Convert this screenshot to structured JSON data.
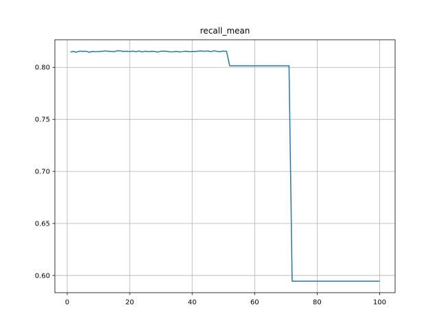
{
  "chart_data": {
    "type": "line",
    "title": "recall_mean",
    "xlabel": "",
    "ylabel": "",
    "xlim": [
      -3.95,
      104.95
    ],
    "ylim": [
      0.5835,
      0.8265
    ],
    "xticks": [
      0,
      20,
      40,
      60,
      80,
      100
    ],
    "yticks": [
      0.6,
      0.65,
      0.7,
      0.75,
      0.8
    ],
    "xtick_labels": [
      "0",
      "20",
      "40",
      "60",
      "80",
      "100"
    ],
    "ytick_labels": [
      "0.60",
      "0.65",
      "0.70",
      "0.75",
      "0.80"
    ],
    "grid": true,
    "series": [
      {
        "color": "#1f77b4",
        "x": [
          1,
          2,
          3,
          4,
          5,
          6,
          7,
          8,
          9,
          10,
          11,
          12,
          13,
          14,
          15,
          16,
          17,
          18,
          19,
          20,
          21,
          22,
          23,
          24,
          25,
          26,
          27,
          28,
          29,
          30,
          31,
          32,
          33,
          34,
          35,
          36,
          37,
          38,
          39,
          40,
          41,
          42,
          43,
          44,
          45,
          46,
          47,
          48,
          49,
          50,
          51,
          52,
          53,
          54,
          55,
          56,
          57,
          58,
          59,
          60,
          61,
          62,
          63,
          64,
          65,
          66,
          67,
          68,
          69,
          70,
          71,
          72,
          73,
          74,
          75,
          76,
          77,
          78,
          79,
          80,
          81,
          82,
          83,
          84,
          85,
          86,
          87,
          88,
          89,
          90,
          91,
          92,
          93,
          94,
          95,
          96,
          97,
          98,
          99,
          100
        ],
        "y": [
          0.8148,
          0.8152,
          0.8146,
          0.8156,
          0.8153,
          0.8155,
          0.8145,
          0.8152,
          0.815,
          0.8151,
          0.8153,
          0.8158,
          0.8155,
          0.8152,
          0.815,
          0.816,
          0.8158,
          0.8153,
          0.8155,
          0.8151,
          0.8156,
          0.815,
          0.8157,
          0.8148,
          0.8155,
          0.815,
          0.8153,
          0.8152,
          0.8147,
          0.8155,
          0.8156,
          0.8153,
          0.8149,
          0.815,
          0.8152,
          0.8148,
          0.8151,
          0.8155,
          0.815,
          0.8152,
          0.8151,
          0.8156,
          0.8157,
          0.8155,
          0.8157,
          0.815,
          0.816,
          0.8153,
          0.815,
          0.8157,
          0.8153,
          0.8015,
          0.8015,
          0.8015,
          0.8015,
          0.8015,
          0.8015,
          0.8015,
          0.8015,
          0.8015,
          0.8015,
          0.8015,
          0.8015,
          0.8015,
          0.8015,
          0.8015,
          0.8015,
          0.8015,
          0.8015,
          0.8015,
          0.8015,
          0.5945,
          0.5945,
          0.5945,
          0.5945,
          0.5945,
          0.5945,
          0.5945,
          0.5945,
          0.5945,
          0.5945,
          0.5945,
          0.5945,
          0.5945,
          0.5945,
          0.5945,
          0.5945,
          0.5945,
          0.5945,
          0.5945,
          0.5945,
          0.5945,
          0.5945,
          0.5945,
          0.5945,
          0.5945,
          0.5945,
          0.5945,
          0.5945,
          0.5945
        ]
      }
    ]
  }
}
